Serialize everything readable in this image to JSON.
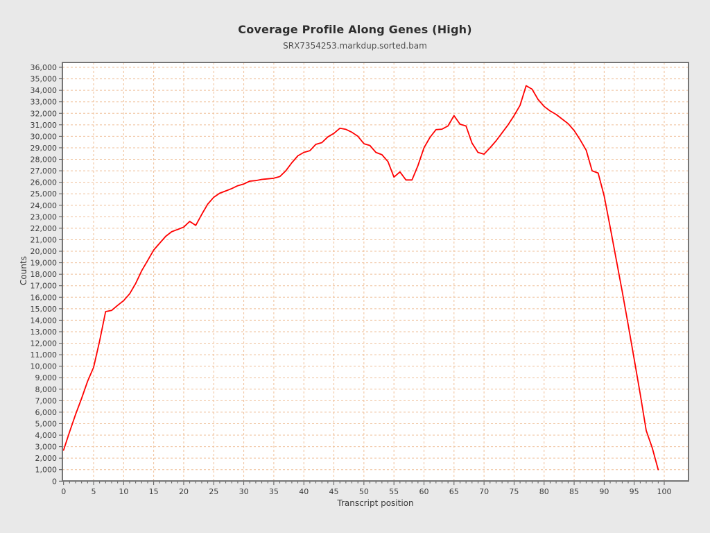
{
  "title": "Coverage Profile Along Genes (High)",
  "subtitle": "SRX7354253.markdup.sorted.bam",
  "chart_data": {
    "type": "line",
    "title": "Coverage Profile Along Genes (High)",
    "subtitle": "SRX7354253.markdup.sorted.bam",
    "xlabel": "Transcript position",
    "ylabel": "Counts",
    "xlim": [
      0,
      100
    ],
    "ylim": [
      0,
      36000
    ],
    "x_tick_minor_step": 1,
    "x_tick_label_step": 5,
    "y_tick_step": 1000,
    "grid": "dashed",
    "legend_position": "none",
    "series": [
      {
        "name": "coverage",
        "color": "#ff0000",
        "x_start": 0,
        "x_step": 1,
        "values": [
          2700,
          4300,
          5800,
          7200,
          8700,
          9900,
          12200,
          14750,
          14850,
          15300,
          15700,
          16300,
          17200,
          18300,
          19200,
          20100,
          20700,
          21300,
          21700,
          21900,
          22100,
          22600,
          22250,
          23200,
          24100,
          24700,
          25050,
          25250,
          25450,
          25700,
          25850,
          26100,
          26150,
          26250,
          26300,
          26350,
          26500,
          27000,
          27700,
          28300,
          28600,
          28750,
          29300,
          29450,
          29950,
          30250,
          30700,
          30600,
          30350,
          30000,
          29350,
          29200,
          28600,
          28400,
          27800,
          26450,
          26900,
          26200,
          26200,
          27450,
          29000,
          29900,
          30580,
          30620,
          30900,
          31800,
          31050,
          30900,
          29400,
          28600,
          28450,
          29000,
          29600,
          30300,
          31000,
          31800,
          32700,
          34400,
          34100,
          33200,
          32600,
          32200,
          31900,
          31500,
          31100,
          30500,
          29700,
          28800,
          27000,
          26800,
          24800,
          22100,
          19300,
          16500,
          13600,
          10600,
          7600,
          4400,
          2900,
          1000
        ]
      }
    ]
  },
  "colors": {
    "page_background": "#e9e9e9",
    "plot_background": "#ffffff",
    "plot_frame": "#757575",
    "gridline": "#efbf97",
    "tick": "#555555",
    "tick_text": "#3a3a3a",
    "line": "#ff0000"
  }
}
